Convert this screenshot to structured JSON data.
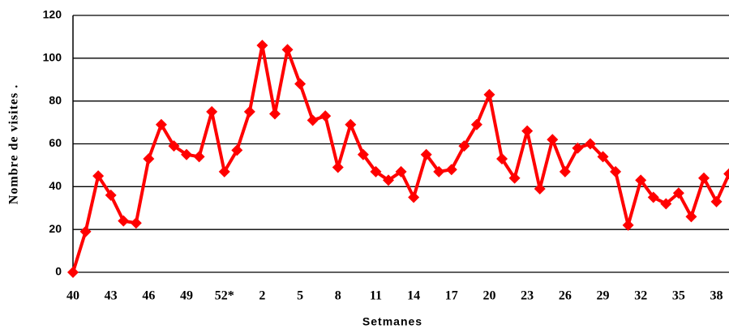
{
  "chart_data": {
    "type": "line",
    "x_label": "Setmanes",
    "y_label": "Nombre de visites .",
    "categories": [
      "40",
      null,
      null,
      "43",
      null,
      null,
      "46",
      null,
      null,
      "49",
      null,
      null,
      "52*",
      null,
      null,
      "2",
      null,
      null,
      "5",
      null,
      null,
      "8",
      null,
      null,
      "11",
      null,
      null,
      "14",
      null,
      null,
      "17",
      null,
      null,
      "20",
      null,
      null,
      "23",
      null,
      null,
      "26",
      null,
      null,
      "29",
      null,
      null,
      "32",
      null,
      null,
      "35",
      null,
      null,
      "38",
      null
    ],
    "values": [
      0,
      19,
      45,
      36,
      24,
      23,
      53,
      69,
      59,
      55,
      54,
      75,
      47,
      57,
      75,
      106,
      74,
      104,
      88,
      71,
      73,
      49,
      69,
      55,
      47,
      43,
      47,
      35,
      55,
      47,
      48,
      59,
      69,
      83,
      53,
      44,
      66,
      39,
      62,
      47,
      58,
      60,
      54,
      47,
      22,
      43,
      35,
      32,
      37,
      26,
      44,
      33,
      46
    ],
    "color": "#ff0000",
    "ylim": [
      0,
      120
    ],
    "yticks": [
      0,
      20,
      40,
      60,
      80,
      100,
      120
    ],
    "grid": true
  }
}
